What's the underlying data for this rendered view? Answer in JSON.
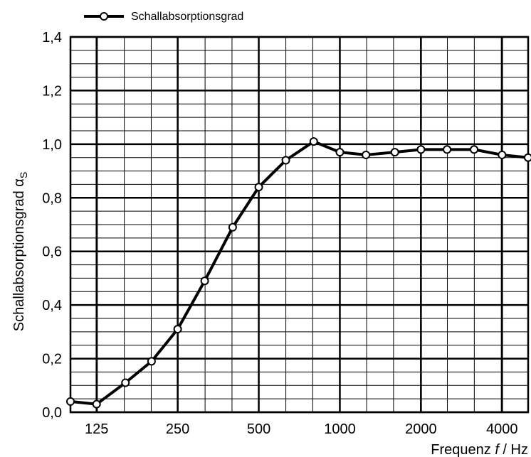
{
  "chart_data": {
    "type": "line",
    "xscale": "log",
    "x_tick_values": [
      125,
      250,
      500,
      1000,
      2000,
      4000
    ],
    "x_tick_labels": [
      "125",
      "250",
      "500",
      "1000",
      "2000",
      "4000"
    ],
    "xlim": [
      100,
      5000
    ],
    "ylim": [
      0,
      1.4
    ],
    "y_ticks": [
      0,
      0.2,
      0.4,
      0.6,
      0.8,
      1.0,
      1.2,
      1.4
    ],
    "y_tick_labels": [
      "0,0",
      "0,2",
      "0,4",
      "0,6",
      "0,8",
      "1,0",
      "1,2",
      "1,4"
    ],
    "xlabel": "Frequenz f / Hz",
    "xlabel_parts": {
      "pre": "Frequenz ",
      "italic": "f",
      "post": " / Hz"
    },
    "ylabel": "Schallabsorptionsgrad αS",
    "ylabel_parts": {
      "main": "Schallabsorptionsgrad α",
      "sub": "S"
    },
    "grid": true,
    "legend_position": "top-left",
    "series": [
      {
        "name": "Schallabsorptionsgrad",
        "color": "#000000",
        "marker": "open-circle",
        "x": [
          100,
          125,
          160,
          200,
          250,
          315,
          400,
          500,
          630,
          800,
          1000,
          1250,
          1600,
          2000,
          2500,
          3150,
          4000,
          5000
        ],
        "y": [
          0.04,
          0.03,
          0.11,
          0.19,
          0.31,
          0.49,
          0.69,
          0.84,
          0.94,
          1.01,
          0.97,
          0.96,
          0.97,
          0.98,
          0.98,
          0.98,
          0.96,
          0.95
        ]
      }
    ]
  }
}
